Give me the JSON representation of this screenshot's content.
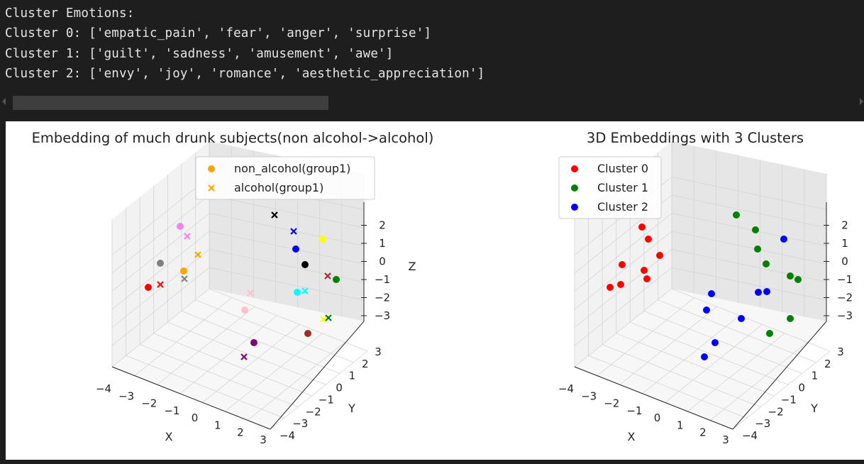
{
  "console": {
    "lines": [
      "Cluster Emotions:",
      "Cluster 0: ['empatic_pain', 'fear', 'anger', 'surprise']",
      "Cluster 1: ['guilt', 'sadness', 'amusement', 'awe']",
      "Cluster 2: ['envy', 'joy', 'romance', 'aesthetic_appreciation']"
    ]
  },
  "chart_data": [
    {
      "type": "scatter",
      "projection": "3d",
      "title": "Embedding of much drunk subjects(non alcohol->alcohol)",
      "xlabel": "X",
      "ylabel": "Y",
      "zlabel": "Z",
      "xlim": [
        -4,
        3
      ],
      "ylim": [
        -4,
        3
      ],
      "zlim": [
        -3,
        2
      ],
      "x_ticks": [
        "−4",
        "−3",
        "−2",
        "−1",
        "0",
        "1",
        "2",
        "3"
      ],
      "y_ticks": [
        "−4",
        "−3",
        "−2",
        "−1",
        "0",
        "1",
        "2",
        "3"
      ],
      "z_ticks": [
        "−3",
        "−2",
        "−1",
        "0",
        "1",
        "2"
      ],
      "grid": true,
      "legend_position": "top-center",
      "legend": [
        {
          "label": "non_alcohol(group1)",
          "marker": "o",
          "color": "#ffa500"
        },
        {
          "label": "alcohol(group1)",
          "marker": "x",
          "color": "#ffa500"
        }
      ],
      "points": [
        {
          "color": "#ff0000",
          "marker": "o"
        },
        {
          "color": "#ff0000",
          "marker": "x"
        },
        {
          "color": "#808080",
          "marker": "o"
        },
        {
          "color": "#808080",
          "marker": "x"
        },
        {
          "color": "#ffa500",
          "marker": "o"
        },
        {
          "color": "#ffa500",
          "marker": "x"
        },
        {
          "color": "#ee82ee",
          "marker": "o"
        },
        {
          "color": "#ee82ee",
          "marker": "x"
        },
        {
          "color": "#000000",
          "marker": "x"
        },
        {
          "color": "#000000",
          "marker": "o"
        },
        {
          "color": "#0000ff",
          "marker": "x"
        },
        {
          "color": "#0000ff",
          "marker": "o"
        },
        {
          "color": "#ffff00",
          "marker": "o"
        },
        {
          "color": "#ffff00",
          "marker": "x"
        },
        {
          "color": "#a52a2a",
          "marker": "x"
        },
        {
          "color": "#a52a2a",
          "marker": "o"
        },
        {
          "color": "#008000",
          "marker": "o"
        },
        {
          "color": "#008000",
          "marker": "x"
        },
        {
          "color": "#00ffff",
          "marker": "o"
        },
        {
          "color": "#00ffff",
          "marker": "x"
        },
        {
          "color": "#ffc0cb",
          "marker": "x"
        },
        {
          "color": "#ffc0cb",
          "marker": "o"
        },
        {
          "color": "#800080",
          "marker": "o"
        },
        {
          "color": "#800080",
          "marker": "x"
        }
      ]
    },
    {
      "type": "scatter",
      "projection": "3d",
      "title": "3D Embeddings with 3 Clusters",
      "xlabel": "X",
      "ylabel": "Y",
      "zlabel": "",
      "xlim": [
        -4,
        3
      ],
      "ylim": [
        -4,
        3
      ],
      "zlim": [
        -3,
        2
      ],
      "x_ticks": [
        "−4",
        "−3",
        "−2",
        "−1",
        "0",
        "1",
        "2",
        "3"
      ],
      "y_ticks": [
        "−4",
        "−3",
        "−2",
        "−1",
        "0",
        "1",
        "2",
        "3"
      ],
      "z_ticks": [
        "−3",
        "−2",
        "−1",
        "0",
        "1",
        "2"
      ],
      "grid": true,
      "legend_position": "top-left",
      "legend": [
        {
          "label": "Cluster 0",
          "marker": "o",
          "color": "#ff0000"
        },
        {
          "label": "Cluster 1",
          "marker": "o",
          "color": "#008000"
        },
        {
          "label": "Cluster 2",
          "marker": "o",
          "color": "#0000ff"
        }
      ],
      "series": [
        {
          "name": "Cluster 0",
          "color": "#ff0000",
          "count": 8
        },
        {
          "name": "Cluster 1",
          "color": "#008000",
          "count": 8
        },
        {
          "name": "Cluster 2",
          "color": "#0000ff",
          "count": 8
        }
      ]
    }
  ]
}
